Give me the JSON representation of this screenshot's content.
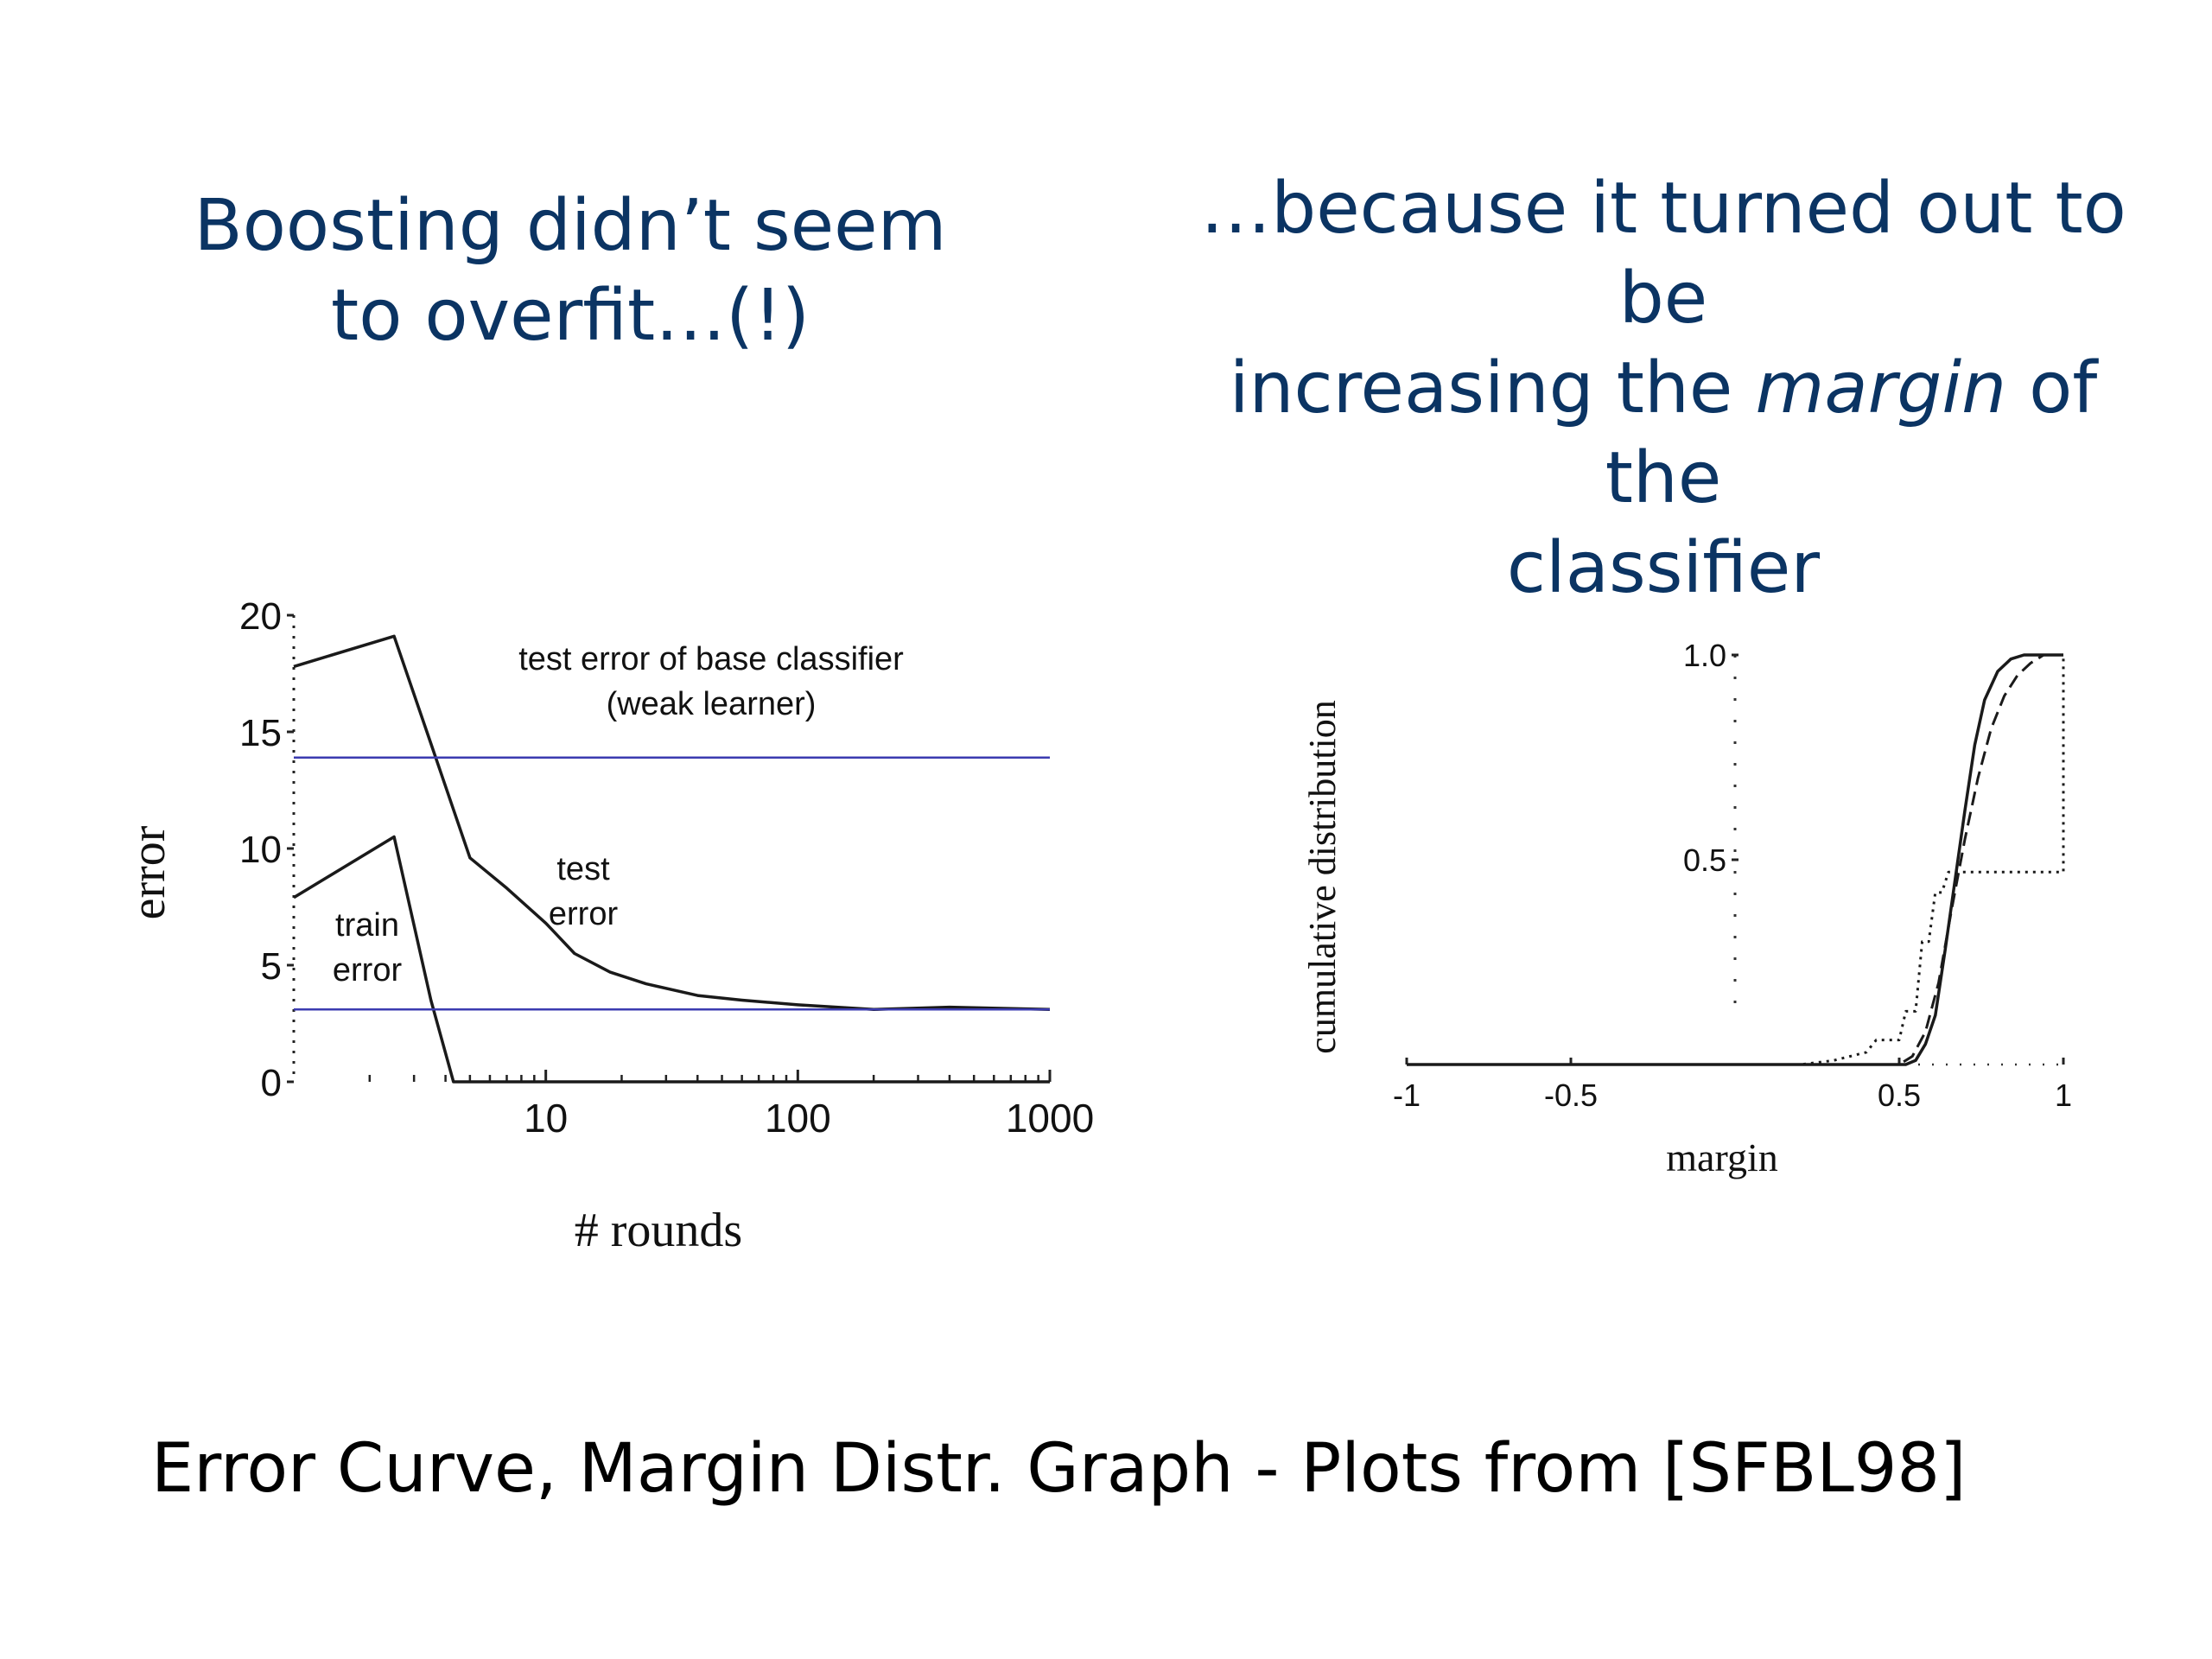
{
  "slide": {
    "heading_left": [
      "Boosting didn’t seem",
      "to overfit…(!)"
    ],
    "heading_right": {
      "line1": "…because it turned out to be",
      "line2_pre": "increasing the ",
      "line2_em": "margin",
      "line2_post": " of the",
      "line3": "classifier"
    },
    "caption": "Error Curve, Margin Distr. Graph - Plots from [SFBL98]",
    "heading_color": "#0b3463",
    "line_color": "#3b3bb0"
  },
  "chart_data": [
    {
      "type": "line",
      "xlabel": "# rounds",
      "ylabel": "error",
      "x_scale": "log",
      "xlim": [
        1,
        1000
      ],
      "ylim": [
        0,
        20
      ],
      "x_ticks": [
        "10",
        "100",
        "1000"
      ],
      "y_ticks": [
        "0",
        "5",
        "10",
        "15",
        "20"
      ],
      "annotations": [
        {
          "lines": [
            "test error of base classifier",
            "(weak learner)"
          ]
        },
        {
          "lines": [
            "test",
            "error"
          ]
        },
        {
          "lines": [
            "train",
            "error"
          ]
        }
      ],
      "series": [
        {
          "id": "test-error",
          "x": [
            1,
            2.5,
            3.5,
            5,
            7,
            10,
            13,
            18,
            25,
            40,
            60,
            100,
            200,
            400,
            1000
          ],
          "y": [
            17.8,
            19.1,
            14.5,
            9.6,
            8.3,
            6.8,
            5.5,
            4.7,
            4.2,
            3.7,
            3.5,
            3.3,
            3.1,
            3.2,
            3.1
          ]
        },
        {
          "id": "train-error",
          "x": [
            1,
            2.5,
            3.5,
            4.3,
            5,
            1000
          ],
          "y": [
            7.9,
            10.5,
            3.5,
            0,
            0,
            0
          ]
        },
        {
          "id": "base-classifier-error",
          "x": [
            1,
            1000
          ],
          "y": [
            13.9,
            13.9
          ]
        },
        {
          "id": "final-error-level",
          "x": [
            1,
            1000
          ],
          "y": [
            3.1,
            3.1
          ]
        }
      ]
    },
    {
      "type": "line",
      "xlabel": "margin",
      "ylabel": "cumulative distribution",
      "xlim": [
        -1,
        1
      ],
      "ylim": [
        0,
        1
      ],
      "x_ticks": [
        "-1",
        "-0.5",
        "0.5",
        "1"
      ],
      "y_ticks": [
        "0.5",
        "1.0"
      ],
      "series": [
        {
          "id": "margin-solid",
          "x": [
            -1,
            0.52,
            0.55,
            0.58,
            0.61,
            0.64,
            0.67,
            0.7,
            0.73,
            0.76,
            0.8,
            0.84,
            0.88,
            1
          ],
          "y": [
            0,
            0,
            0.01,
            0.05,
            0.12,
            0.28,
            0.45,
            0.62,
            0.78,
            0.89,
            0.96,
            0.99,
            1,
            1
          ]
        },
        {
          "id": "margin-dashed",
          "x": [
            -1,
            0.5,
            0.54,
            0.58,
            0.62,
            0.66,
            0.7,
            0.74,
            0.78,
            0.82,
            0.86,
            0.9,
            0.94,
            1
          ],
          "y": [
            0,
            0,
            0.02,
            0.08,
            0.2,
            0.38,
            0.55,
            0.7,
            0.82,
            0.9,
            0.95,
            0.98,
            1,
            1
          ]
        },
        {
          "id": "margin-dotted",
          "x": [
            -1,
            0.2,
            0.3,
            0.4,
            0.43,
            0.5,
            0.52,
            0.55,
            0.57,
            0.59,
            0.61,
            0.63,
            0.65,
            0.68,
            1,
            1
          ],
          "y": [
            0,
            0,
            0.01,
            0.03,
            0.06,
            0.06,
            0.13,
            0.13,
            0.3,
            0.3,
            0.42,
            0.42,
            0.47,
            0.47,
            0.47,
            1
          ]
        }
      ]
    }
  ]
}
